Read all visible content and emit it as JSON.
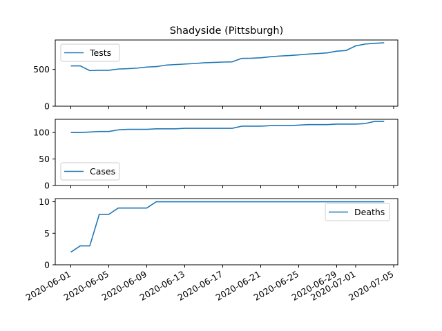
{
  "title": "Shadyside (Pittsburgh)",
  "colors": {
    "series": "#1f77b4",
    "axes": "#000000",
    "background": "#ffffff",
    "legend_border": "#cccccc"
  },
  "chart_data": [
    {
      "type": "line",
      "ylim": [
        0,
        900
      ],
      "yticks": [
        0,
        500
      ],
      "legend_placement": "upper-left",
      "grid": false,
      "series": [
        {
          "name": "Tests",
          "x": [
            "2020-06-01",
            "2020-06-02",
            "2020-06-03",
            "2020-06-04",
            "2020-06-05",
            "2020-06-06",
            "2020-06-07",
            "2020-06-08",
            "2020-06-09",
            "2020-06-10",
            "2020-06-11",
            "2020-06-12",
            "2020-06-13",
            "2020-06-14",
            "2020-06-15",
            "2020-06-16",
            "2020-06-17",
            "2020-06-18",
            "2020-06-19",
            "2020-06-20",
            "2020-06-21",
            "2020-06-22",
            "2020-06-23",
            "2020-06-24",
            "2020-06-25",
            "2020-06-26",
            "2020-06-27",
            "2020-06-28",
            "2020-06-29",
            "2020-06-30",
            "2020-07-01",
            "2020-07-02",
            "2020-07-03",
            "2020-07-04"
          ],
          "values": [
            548,
            548,
            484,
            488,
            488,
            505,
            510,
            518,
            532,
            538,
            558,
            566,
            573,
            580,
            590,
            595,
            600,
            603,
            650,
            652,
            658,
            672,
            682,
            688,
            698,
            708,
            716,
            725,
            748,
            758,
            820,
            845,
            855,
            862
          ]
        }
      ]
    },
    {
      "type": "line",
      "ylim": [
        0,
        125
      ],
      "yticks": [
        0,
        50,
        100
      ],
      "legend_placement": "lower-left",
      "grid": false,
      "series": [
        {
          "name": "Cases",
          "x": [
            "2020-06-01",
            "2020-06-02",
            "2020-06-03",
            "2020-06-04",
            "2020-06-05",
            "2020-06-06",
            "2020-06-07",
            "2020-06-08",
            "2020-06-09",
            "2020-06-10",
            "2020-06-11",
            "2020-06-12",
            "2020-06-13",
            "2020-06-14",
            "2020-06-15",
            "2020-06-16",
            "2020-06-17",
            "2020-06-18",
            "2020-06-19",
            "2020-06-20",
            "2020-06-21",
            "2020-06-22",
            "2020-06-23",
            "2020-06-24",
            "2020-06-25",
            "2020-06-26",
            "2020-06-27",
            "2020-06-28",
            "2020-06-29",
            "2020-06-30",
            "2020-07-01",
            "2020-07-02",
            "2020-07-03",
            "2020-07-04"
          ],
          "values": [
            100,
            100,
            101,
            102,
            102,
            105,
            106,
            106,
            106,
            107,
            107,
            107,
            108,
            108,
            108,
            108,
            108,
            108,
            112,
            112,
            112,
            113,
            113,
            113,
            114,
            115,
            115,
            115,
            116,
            116,
            116,
            117,
            121,
            121
          ]
        }
      ]
    },
    {
      "type": "line",
      "ylim": [
        0,
        10.5
      ],
      "yticks": [
        0,
        5,
        10
      ],
      "legend_placement": "upper-right",
      "grid": false,
      "xticks": [
        "2020-06-01",
        "2020-06-05",
        "2020-06-09",
        "2020-06-13",
        "2020-06-17",
        "2020-06-21",
        "2020-06-25",
        "2020-06-29",
        "2020-07-01",
        "2020-07-05"
      ],
      "series": [
        {
          "name": "Deaths",
          "x": [
            "2020-06-01",
            "2020-06-02",
            "2020-06-03",
            "2020-06-04",
            "2020-06-05",
            "2020-06-06",
            "2020-06-07",
            "2020-06-08",
            "2020-06-09",
            "2020-06-10",
            "2020-06-11",
            "2020-06-12",
            "2020-06-13",
            "2020-06-14",
            "2020-06-15",
            "2020-06-16",
            "2020-06-17",
            "2020-06-18",
            "2020-06-19",
            "2020-06-20",
            "2020-06-21",
            "2020-06-22",
            "2020-06-23",
            "2020-06-24",
            "2020-06-25",
            "2020-06-26",
            "2020-06-27",
            "2020-06-28",
            "2020-06-29",
            "2020-06-30",
            "2020-07-01",
            "2020-07-02",
            "2020-07-03",
            "2020-07-04"
          ],
          "values": [
            2,
            3,
            3,
            8,
            8,
            9,
            9,
            9,
            9,
            10,
            10,
            10,
            10,
            10,
            10,
            10,
            10,
            10,
            10,
            10,
            10,
            10,
            10,
            10,
            10,
            10,
            10,
            10,
            10,
            10,
            10,
            10,
            10,
            10
          ]
        }
      ]
    }
  ]
}
